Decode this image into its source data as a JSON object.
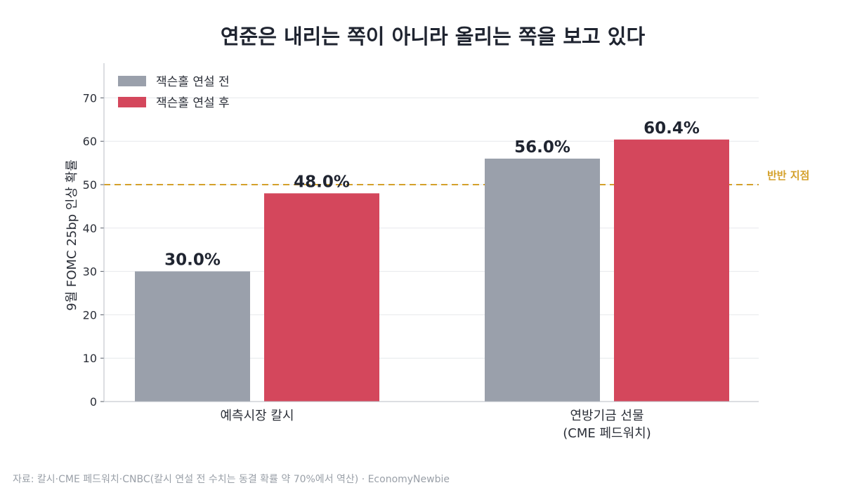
{
  "chart_data": {
    "type": "bar",
    "title": "연준은 내리는 쪽이 아니라 올리는 쪽을 보고 있다",
    "ylabel": "9월 FOMC 25bp 인상 확률",
    "xlabel": "",
    "ylim": [
      0,
      78
    ],
    "yticks": [
      0,
      10,
      20,
      30,
      40,
      50,
      60,
      70
    ],
    "grid": true,
    "legend_position": "top-left",
    "categories": [
      [
        "예측시장 칼시"
      ],
      [
        "연방기금 선물",
        "(CME 페드워치)"
      ]
    ],
    "series": [
      {
        "name": "잭슨홀 연설 전",
        "values": [
          30.0,
          56.0
        ],
        "labels": [
          "30.0%",
          "56.0%"
        ],
        "color": "#9aa0ab"
      },
      {
        "name": "잭슨홀 연설 후",
        "values": [
          48.0,
          60.4
        ],
        "labels": [
          "48.0%",
          "60.4%"
        ],
        "color": "#d4475c"
      }
    ],
    "reference_line": {
      "value": 50,
      "label": "반반 지점",
      "color": "#d4a02a"
    }
  },
  "source_note": "자료: 칼시·CME 페드워치·CNBC(칼시 연설 전 수치는 동결 확률 약 70%에서 역산) · EconomyNewbie"
}
